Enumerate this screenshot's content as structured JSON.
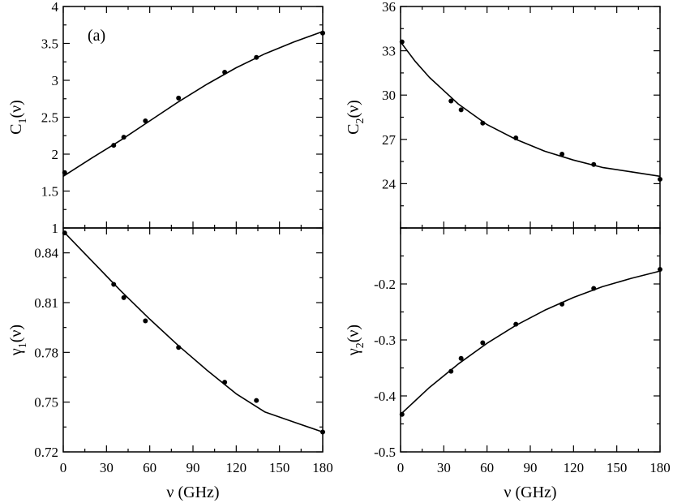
{
  "figure": {
    "panel_tag": "(a)",
    "xlabel": "ν (GHz)"
  },
  "chart_data": [
    {
      "type": "scatter",
      "id": "C1",
      "ylabel_main": "C",
      "ylabel_sub": "1",
      "ylabel_tail": "(ν)",
      "xlim": [
        0,
        180
      ],
      "ylim": [
        1,
        4
      ],
      "xticks": [
        0,
        30,
        60,
        90,
        120,
        150,
        180
      ],
      "yticks": [
        1,
        1.5,
        2,
        2.5,
        3,
        3.5,
        4
      ],
      "ytick_labels": [
        "1",
        "1.5",
        "2",
        "2.5",
        "3",
        "3.5",
        "4"
      ],
      "x": [
        1,
        35,
        42,
        57,
        80,
        112,
        134,
        180
      ],
      "y": [
        1.75,
        2.12,
        2.23,
        2.45,
        2.76,
        3.11,
        3.31,
        3.64
      ],
      "fit": {
        "x": [
          0,
          20,
          40,
          60,
          80,
          100,
          120,
          140,
          160,
          180
        ],
        "y": [
          1.7,
          1.95,
          2.19,
          2.45,
          2.71,
          2.95,
          3.17,
          3.36,
          3.52,
          3.66
        ]
      }
    },
    {
      "type": "scatter",
      "id": "C2",
      "ylabel_main": "C",
      "ylabel_sub": "2",
      "ylabel_tail": "(ν)",
      "xlim": [
        0,
        180
      ],
      "ylim": [
        21,
        36
      ],
      "xticks": [
        0,
        30,
        60,
        90,
        120,
        150,
        180
      ],
      "yticks": [
        24,
        27,
        30,
        33,
        36
      ],
      "ytick_labels": [
        "24",
        "27",
        "30",
        "33",
        "36"
      ],
      "x": [
        1,
        35,
        42,
        57,
        80,
        112,
        134,
        180
      ],
      "y": [
        33.6,
        29.6,
        29.0,
        28.1,
        27.1,
        26.0,
        25.3,
        24.3
      ],
      "fit": {
        "x": [
          0,
          10,
          20,
          30,
          40,
          50,
          60,
          80,
          100,
          120,
          140,
          160,
          180
        ],
        "y": [
          33.6,
          32.3,
          31.2,
          30.3,
          29.4,
          28.7,
          28.0,
          27.0,
          26.2,
          25.6,
          25.1,
          24.8,
          24.5
        ]
      }
    },
    {
      "type": "scatter",
      "id": "gamma1",
      "ylabel_main": "γ",
      "ylabel_sub": "1",
      "ylabel_tail": "(ν)",
      "xlim": [
        0,
        180
      ],
      "ylim": [
        0.72,
        0.855
      ],
      "xticks": [
        0,
        30,
        60,
        90,
        120,
        150,
        180
      ],
      "yticks": [
        0.72,
        0.75,
        0.78,
        0.81,
        0.84
      ],
      "ytick_labels": [
        "0.72",
        "0.75",
        "0.78",
        "0.81",
        "0.84"
      ],
      "x": [
        1,
        35,
        42,
        57,
        80,
        112,
        134,
        180
      ],
      "y": [
        0.852,
        0.821,
        0.813,
        0.799,
        0.783,
        0.762,
        0.751,
        0.732
      ],
      "fit": {
        "x": [
          0,
          20,
          40,
          60,
          80,
          100,
          120,
          140,
          160,
          180
        ],
        "y": [
          0.853,
          0.835,
          0.817,
          0.8,
          0.784,
          0.769,
          0.755,
          0.744,
          0.738,
          0.732
        ]
      }
    },
    {
      "type": "scatter",
      "id": "gamma2",
      "ylabel_main": "γ",
      "ylabel_sub": "2",
      "ylabel_tail": "(ν)",
      "xlim": [
        0,
        180
      ],
      "ylim": [
        -0.5,
        -0.1
      ],
      "xticks": [
        0,
        30,
        60,
        90,
        120,
        150,
        180
      ],
      "yticks": [
        -0.5,
        -0.4,
        -0.3,
        -0.2
      ],
      "ytick_labels": [
        "-0.5",
        "-0.4",
        "-0.3",
        "-0.2"
      ],
      "x": [
        1,
        35,
        42,
        57,
        80,
        112,
        134,
        180
      ],
      "y": [
        -0.433,
        -0.356,
        -0.333,
        -0.305,
        -0.272,
        -0.236,
        -0.208,
        -0.174
      ],
      "fit": {
        "x": [
          0,
          20,
          40,
          60,
          80,
          100,
          120,
          140,
          160,
          180
        ],
        "y": [
          -0.433,
          -0.385,
          -0.343,
          -0.306,
          -0.274,
          -0.247,
          -0.224,
          -0.205,
          -0.19,
          -0.177
        ]
      }
    }
  ]
}
